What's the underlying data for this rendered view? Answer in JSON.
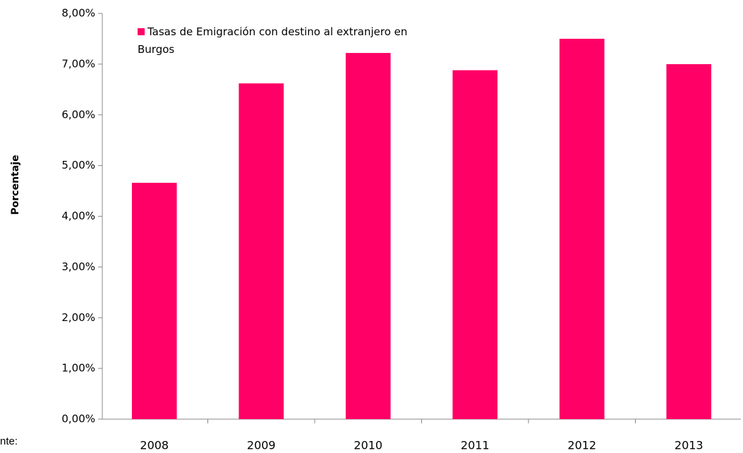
{
  "chart_data": {
    "type": "bar",
    "y_label": "Porcentaje",
    "footnote": "nte:",
    "categories": [
      "2008",
      "2009",
      "2010",
      "2011",
      "2012",
      "2013"
    ],
    "series": [
      {
        "name": "Tasas de Emigración  con destino al extranjero en Burgos",
        "color": "#ff0066",
        "values": [
          4.66,
          6.62,
          7.22,
          6.88,
          7.5,
          7.0
        ]
      }
    ],
    "ylim": [
      0,
      8
    ],
    "yticks": [
      {
        "value": 0,
        "label": "0,00%"
      },
      {
        "value": 1,
        "label": "1,00%"
      },
      {
        "value": 2,
        "label": "2,00%"
      },
      {
        "value": 3,
        "label": "3,00%"
      },
      {
        "value": 4,
        "label": "4,00%"
      },
      {
        "value": 5,
        "label": "5,00%"
      },
      {
        "value": 6,
        "label": "6,00%"
      },
      {
        "value": 7,
        "label": "7,00%"
      },
      {
        "value": 8,
        "label": "8,00%"
      }
    ],
    "grid": false,
    "legend": "top-left"
  }
}
